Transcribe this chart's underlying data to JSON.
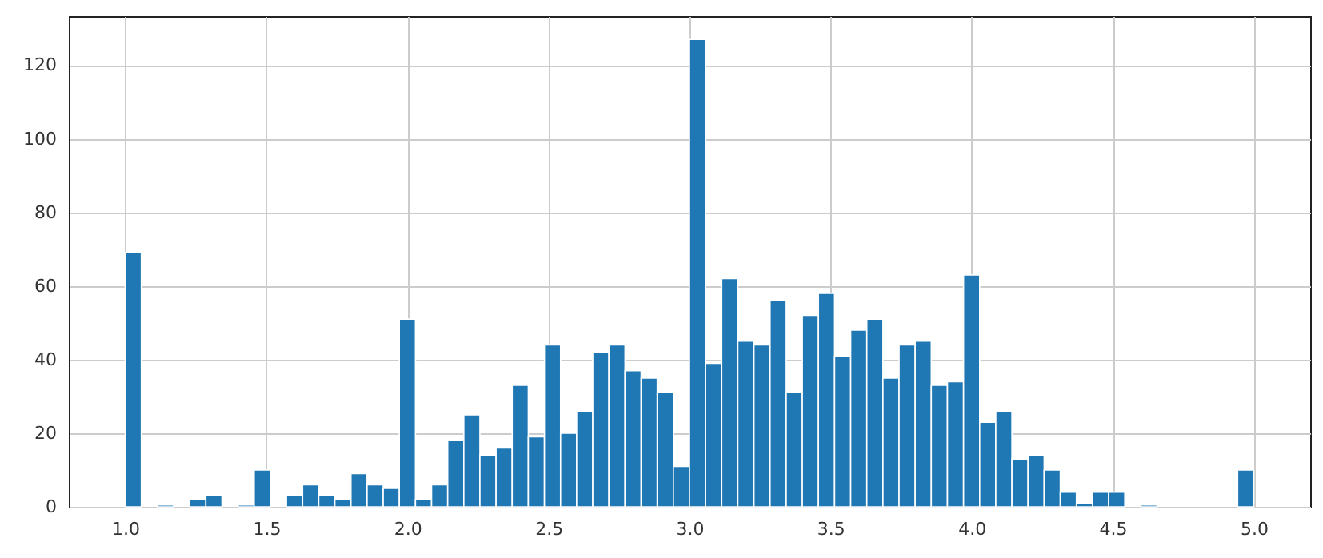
{
  "chart_data": {
    "type": "histogram",
    "bins": [
      1,
      1.0571,
      1.1143,
      1.1714,
      1.2286,
      1.2857,
      1.3429,
      1.4,
      1.4571,
      1.5143,
      1.5714,
      1.6286,
      1.6857,
      1.7429,
      1.8,
      1.8571,
      1.9143,
      1.9714,
      2.0286,
      2.0857,
      2.1429,
      2.2,
      2.2571,
      2.3143,
      2.3714,
      2.4286,
      2.4857,
      2.5429,
      2.6,
      2.6571,
      2.7143,
      2.7714,
      2.8286,
      2.8857,
      2.9429,
      3,
      3.0571,
      3.1143,
      3.1714,
      3.2286,
      3.2857,
      3.3429,
      3.4,
      3.4571,
      3.5143,
      3.5714,
      3.6286,
      3.6857,
      3.7429,
      3.8,
      3.8571,
      3.9143,
      3.9714,
      4.0286,
      4.0857,
      4.1429,
      4.2,
      4.2571,
      4.3143,
      4.3714,
      4.4286,
      4.4857,
      4.5429,
      4.6,
      4.6571,
      4.7143,
      4.7714,
      4.8286,
      4.8857,
      4.9429,
      5
    ],
    "values": [
      69,
      0,
      0.5,
      0,
      2,
      3,
      0,
      0.5,
      10,
      0,
      3,
      6,
      3,
      2,
      9,
      6,
      5,
      51,
      2,
      6,
      18,
      25,
      14,
      16,
      33,
      19,
      44,
      20,
      26,
      42,
      44,
      37,
      35,
      31,
      11,
      127,
      39,
      62,
      45,
      44,
      56,
      31,
      52,
      58,
      41,
      48,
      51,
      35,
      44,
      45,
      33,
      34,
      63,
      23,
      26,
      13,
      14,
      10,
      4,
      1,
      4,
      4,
      0,
      0.5,
      0,
      0,
      0,
      0,
      0,
      10
    ],
    "color": "#1f77b4",
    "xlim": [
      0.8,
      5.2
    ],
    "ylim": [
      0,
      133.35
    ],
    "xticks": [
      {
        "value": 1,
        "label": "1.0"
      },
      {
        "value": 1.5,
        "label": "1.5"
      },
      {
        "value": 2,
        "label": "2.0"
      },
      {
        "value": 2.5,
        "label": "2.5"
      },
      {
        "value": 3,
        "label": "3.0"
      },
      {
        "value": 3.5,
        "label": "3.5"
      },
      {
        "value": 4,
        "label": "4.0"
      },
      {
        "value": 4.5,
        "label": "4.5"
      },
      {
        "value": 5,
        "label": "5.0"
      }
    ],
    "yticks": [
      0,
      20,
      40,
      60,
      80,
      100,
      120
    ],
    "grid": true
  }
}
